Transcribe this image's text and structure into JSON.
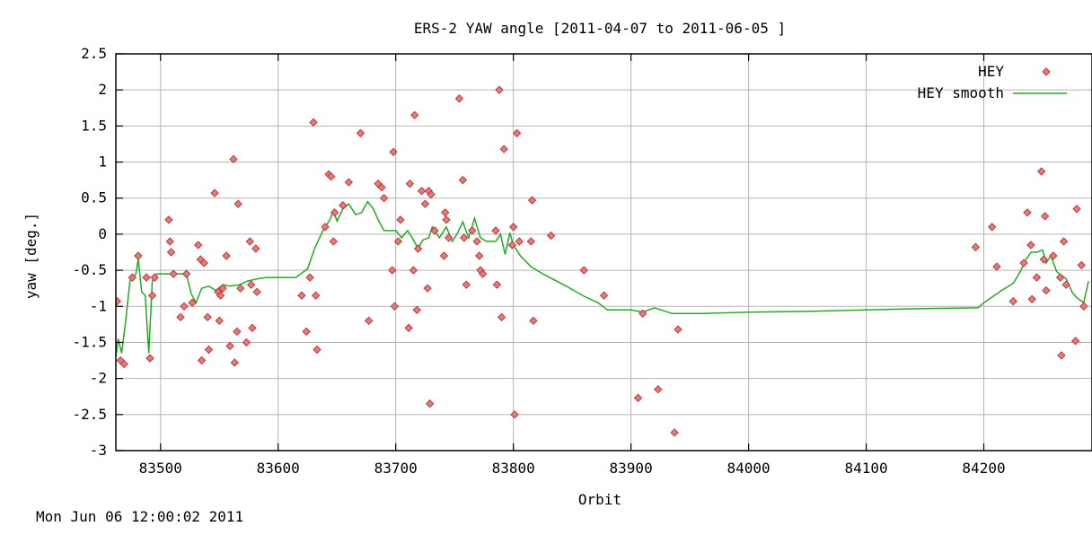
{
  "chart_data": {
    "type": "scatter",
    "title": "ERS-2 YAW angle [2011-04-07 to 2011-06-05 ]",
    "xlabel": "Orbit",
    "ylabel": "yaw [deg.]",
    "xlim": [
      83462,
      84292
    ],
    "ylim": [
      -3,
      2.5
    ],
    "xticks": [
      83500,
      83600,
      83700,
      83800,
      83900,
      84000,
      84100,
      84200
    ],
    "yticks": [
      2.5,
      2,
      1.5,
      1,
      0.5,
      0,
      -0.5,
      -1,
      -1.5,
      -2,
      -2.5,
      -3
    ],
    "ytick_labels": [
      "2.5",
      "2",
      "1.5",
      "1",
      "0.5",
      "0",
      "-0.5",
      "-1",
      "-1.5",
      "-2",
      "-2.5",
      "-3"
    ],
    "grid": true,
    "legend_position": "top-right",
    "series": [
      {
        "name": "HEY",
        "kind": "points",
        "color": "#cc3333",
        "points": [
          [
            83463,
            -0.93
          ],
          [
            83466,
            -1.75
          ],
          [
            83469,
            -1.8
          ],
          [
            83476,
            -0.6
          ],
          [
            83481,
            -0.3
          ],
          [
            83488,
            -0.6
          ],
          [
            83491,
            -1.72
          ],
          [
            83493,
            -0.85
          ],
          [
            83495,
            -0.6
          ],
          [
            83507,
            0.2
          ],
          [
            83508,
            -0.1
          ],
          [
            83509,
            -0.25
          ],
          [
            83511,
            -0.55
          ],
          [
            83517,
            -1.15
          ],
          [
            83520,
            -1.0
          ],
          [
            83522,
            -0.55
          ],
          [
            83527,
            -0.95
          ],
          [
            83532,
            -0.15
          ],
          [
            83534,
            -0.35
          ],
          [
            83535,
            -1.75
          ],
          [
            83537,
            -0.4
          ],
          [
            83540,
            -1.15
          ],
          [
            83541,
            -1.6
          ],
          [
            83546,
            0.57
          ],
          [
            83549,
            -0.8
          ],
          [
            83550,
            -1.2
          ],
          [
            83551,
            -0.85
          ],
          [
            83553,
            -0.75
          ],
          [
            83556,
            -0.3
          ],
          [
            83559,
            -1.55
          ],
          [
            83562,
            1.04
          ],
          [
            83563,
            -1.78
          ],
          [
            83565,
            -1.35
          ],
          [
            83566,
            0.42
          ],
          [
            83568,
            -0.75
          ],
          [
            83573,
            -1.5
          ],
          [
            83576,
            -0.1
          ],
          [
            83577,
            -0.7
          ],
          [
            83578,
            -1.3
          ],
          [
            83581,
            -0.2
          ],
          [
            83582,
            -0.8
          ],
          [
            83620,
            -0.85
          ],
          [
            83624,
            -1.35
          ],
          [
            83627,
            -0.6
          ],
          [
            83630,
            1.55
          ],
          [
            83632,
            -0.85
          ],
          [
            83633,
            -1.6
          ],
          [
            83640,
            0.1
          ],
          [
            83643,
            0.83
          ],
          [
            83645,
            0.8
          ],
          [
            83647,
            -0.1
          ],
          [
            83648,
            0.3
          ],
          [
            83655,
            0.4
          ],
          [
            83660,
            0.72
          ],
          [
            83670,
            1.4
          ],
          [
            83677,
            -1.2
          ],
          [
            83685,
            0.7
          ],
          [
            83688,
            0.65
          ],
          [
            83690,
            0.5
          ],
          [
            83697,
            -0.5
          ],
          [
            83698,
            1.14
          ],
          [
            83699,
            -1.0
          ],
          [
            83702,
            -0.1
          ],
          [
            83704,
            0.2
          ],
          [
            83711,
            -1.3
          ],
          [
            83712,
            0.7
          ],
          [
            83715,
            -0.5
          ],
          [
            83716,
            1.65
          ],
          [
            83718,
            -1.05
          ],
          [
            83719,
            -0.2
          ],
          [
            83722,
            0.6
          ],
          [
            83725,
            0.42
          ],
          [
            83727,
            -0.75
          ],
          [
            83728,
            0.6
          ],
          [
            83729,
            -2.35
          ],
          [
            83730,
            0.55
          ],
          [
            83733,
            0.05
          ],
          [
            83741,
            -0.3
          ],
          [
            83742,
            0.3
          ],
          [
            83743,
            0.2
          ],
          [
            83745,
            -0.05
          ],
          [
            83754,
            1.88
          ],
          [
            83757,
            0.75
          ],
          [
            83758,
            -0.05
          ],
          [
            83760,
            -0.7
          ],
          [
            83765,
            0.05
          ],
          [
            83769,
            -0.1
          ],
          [
            83771,
            -0.3
          ],
          [
            83772,
            -0.5
          ],
          [
            83774,
            -0.55
          ],
          [
            83785,
            0.05
          ],
          [
            83786,
            -0.7
          ],
          [
            83788,
            2.0
          ],
          [
            83790,
            -1.15
          ],
          [
            83792,
            1.18
          ],
          [
            83799,
            -0.15
          ],
          [
            83800,
            0.1
          ],
          [
            83801,
            -2.5
          ],
          [
            83803,
            1.4
          ],
          [
            83805,
            -0.1
          ],
          [
            83815,
            -0.1
          ],
          [
            83816,
            0.47
          ],
          [
            83817,
            -1.2
          ],
          [
            83832,
            -0.02
          ],
          [
            83860,
            -0.5
          ],
          [
            83877,
            -0.85
          ],
          [
            83906,
            -2.27
          ],
          [
            83910,
            -1.1
          ],
          [
            83923,
            -2.15
          ],
          [
            83937,
            -2.75
          ],
          [
            83940,
            -1.32
          ],
          [
            84193,
            -0.18
          ],
          [
            84207,
            0.1
          ],
          [
            84211,
            -0.45
          ],
          [
            84225,
            -0.93
          ],
          [
            84234,
            -0.4
          ],
          [
            84237,
            0.3
          ],
          [
            84240,
            -0.15
          ],
          [
            84241,
            -0.9
          ],
          [
            84245,
            -0.6
          ],
          [
            84249,
            0.87
          ],
          [
            84251,
            -0.35
          ],
          [
            84252,
            0.25
          ],
          [
            84253,
            -0.78
          ],
          [
            84259,
            -0.3
          ],
          [
            84265,
            -0.6
          ],
          [
            84266,
            -1.68
          ],
          [
            84268,
            -0.1
          ],
          [
            84270,
            -0.7
          ],
          [
            84278,
            -1.48
          ],
          [
            84279,
            0.35
          ],
          [
            84283,
            -0.43
          ],
          [
            84285,
            -1.0
          ]
        ]
      },
      {
        "name": "HEY smooth",
        "kind": "line",
        "color": "#22aa22",
        "points": [
          [
            83462,
            -1.7
          ],
          [
            83464,
            -1.45
          ],
          [
            83467,
            -1.65
          ],
          [
            83470,
            -1.25
          ],
          [
            83474,
            -0.65
          ],
          [
            83479,
            -0.55
          ],
          [
            83481,
            -0.35
          ],
          [
            83484,
            -0.8
          ],
          [
            83487,
            -0.85
          ],
          [
            83490,
            -1.65
          ],
          [
            83493,
            -0.65
          ],
          [
            83497,
            -0.55
          ],
          [
            83505,
            -0.55
          ],
          [
            83509,
            -0.55
          ],
          [
            83512,
            -0.55
          ],
          [
            83522,
            -0.55
          ],
          [
            83526,
            -0.82
          ],
          [
            83530,
            -0.95
          ],
          [
            83535,
            -0.75
          ],
          [
            83541,
            -0.72
          ],
          [
            83547,
            -0.78
          ],
          [
            83553,
            -0.7
          ],
          [
            83559,
            -0.72
          ],
          [
            83567,
            -0.7
          ],
          [
            83574,
            -0.65
          ],
          [
            83582,
            -0.62
          ],
          [
            83590,
            -0.6
          ],
          [
            83600,
            -0.6
          ],
          [
            83615,
            -0.6
          ],
          [
            83625,
            -0.48
          ],
          [
            83631,
            -0.2
          ],
          [
            83638,
            0.05
          ],
          [
            83644,
            0.2
          ],
          [
            83647,
            0.33
          ],
          [
            83650,
            0.18
          ],
          [
            83655,
            0.35
          ],
          [
            83660,
            0.42
          ],
          [
            83666,
            0.27
          ],
          [
            83671,
            0.3
          ],
          [
            83676,
            0.45
          ],
          [
            83681,
            0.35
          ],
          [
            83685,
            0.2
          ],
          [
            83690,
            0.05
          ],
          [
            83700,
            0.05
          ],
          [
            83705,
            -0.05
          ],
          [
            83710,
            0.05
          ],
          [
            83714,
            -0.05
          ],
          [
            83719,
            -0.2
          ],
          [
            83723,
            -0.08
          ],
          [
            83728,
            -0.05
          ],
          [
            83731,
            0.1
          ],
          [
            83737,
            -0.05
          ],
          [
            83743,
            0.1
          ],
          [
            83748,
            -0.1
          ],
          [
            83752,
            0.0
          ],
          [
            83757,
            0.17
          ],
          [
            83762,
            -0.05
          ],
          [
            83767,
            0.22
          ],
          [
            83772,
            -0.05
          ],
          [
            83777,
            -0.1
          ],
          [
            83780,
            -0.1
          ],
          [
            83785,
            -0.1
          ],
          [
            83789,
            0.0
          ],
          [
            83793,
            -0.28
          ],
          [
            83797,
            0.02
          ],
          [
            83800,
            -0.15
          ],
          [
            83806,
            -0.3
          ],
          [
            83815,
            -0.45
          ],
          [
            83825,
            -0.55
          ],
          [
            83845,
            -0.72
          ],
          [
            83860,
            -0.86
          ],
          [
            83872,
            -0.95
          ],
          [
            83880,
            -1.05
          ],
          [
            83900,
            -1.05
          ],
          [
            83910,
            -1.08
          ],
          [
            83920,
            -1.02
          ],
          [
            83935,
            -1.1
          ],
          [
            83960,
            -1.1
          ],
          [
            84000,
            -1.08
          ],
          [
            84050,
            -1.07
          ],
          [
            84100,
            -1.05
          ],
          [
            84150,
            -1.03
          ],
          [
            84195,
            -1.02
          ],
          [
            84200,
            -0.95
          ],
          [
            84215,
            -0.78
          ],
          [
            84225,
            -0.68
          ],
          [
            84230,
            -0.55
          ],
          [
            84236,
            -0.35
          ],
          [
            84240,
            -0.25
          ],
          [
            84245,
            -0.25
          ],
          [
            84250,
            -0.22
          ],
          [
            84253,
            -0.4
          ],
          [
            84257,
            -0.3
          ],
          [
            84262,
            -0.52
          ],
          [
            84270,
            -0.62
          ],
          [
            84275,
            -0.8
          ],
          [
            84279,
            -0.88
          ],
          [
            84285,
            -0.95
          ],
          [
            84289,
            -0.65
          ]
        ]
      }
    ]
  },
  "footer": {
    "timestamp": "Mon Jun 06 12:00:02 2011"
  }
}
